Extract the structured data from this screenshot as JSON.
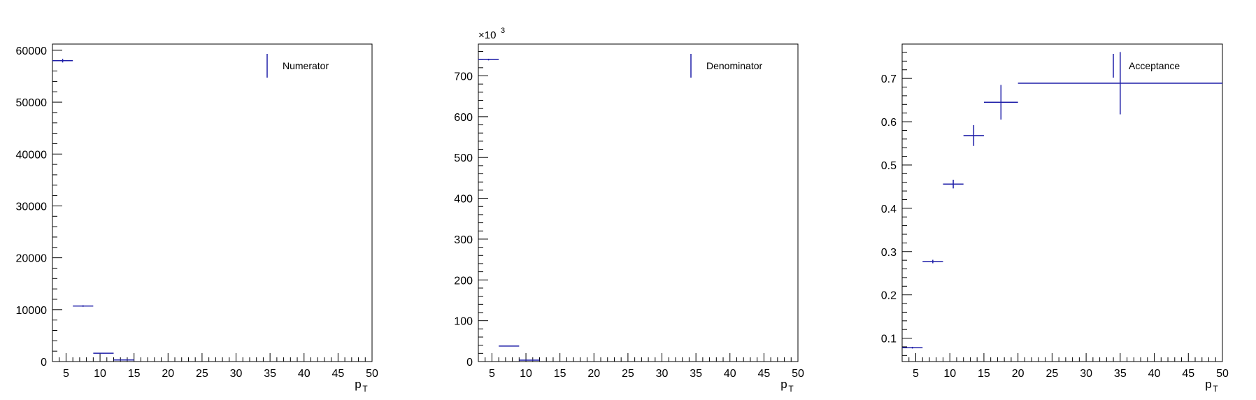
{
  "chart_data": [
    {
      "type": "scatter",
      "style": "error-bars",
      "xlabel": "p",
      "xlabel_sub": "T",
      "ylabel": "",
      "xlim": [
        3,
        50
      ],
      "ylim": [
        0,
        61200
      ],
      "x_ticks": [
        "5",
        "10",
        "15",
        "20",
        "25",
        "30",
        "35",
        "40",
        "45",
        "50"
      ],
      "y_ticks": [
        "0",
        "10000",
        "20000",
        "30000",
        "40000",
        "50000",
        "60000"
      ],
      "y_tick_values": [
        0,
        10000,
        20000,
        30000,
        40000,
        50000,
        60000
      ],
      "exponent": "",
      "legend": {
        "label": "Numerator",
        "position": "top-right"
      },
      "color": "#1f1fa8",
      "points": [
        {
          "x0": 3,
          "x1": 6,
          "y": 58000,
          "yerr": 350
        },
        {
          "x0": 6,
          "x1": 9,
          "y": 10700,
          "yerr": 150
        },
        {
          "x0": 9,
          "x1": 12,
          "y": 1600,
          "yerr": 60
        },
        {
          "x0": 12,
          "x1": 15,
          "y": 300,
          "yerr": 30
        }
      ]
    },
    {
      "type": "scatter",
      "style": "error-bars",
      "xlabel": "p",
      "xlabel_sub": "T",
      "ylabel": "",
      "xlim": [
        3,
        50
      ],
      "ylim": [
        0,
        778
      ],
      "x_ticks": [
        "5",
        "10",
        "15",
        "20",
        "25",
        "30",
        "35",
        "40",
        "45",
        "50"
      ],
      "y_ticks": [
        "0",
        "100",
        "200",
        "300",
        "400",
        "500",
        "600",
        "700"
      ],
      "y_tick_values": [
        0,
        100,
        200,
        300,
        400,
        500,
        600,
        700
      ],
      "exponent": "×10",
      "exponent_power": "3",
      "legend": {
        "label": "Denominator",
        "position": "top-right"
      },
      "color": "#1f1fa8",
      "points": [
        {
          "x0": 3,
          "x1": 6,
          "y": 740,
          "yerr": 2
        },
        {
          "x0": 6,
          "x1": 9,
          "y": 38,
          "yerr": 0.5
        },
        {
          "x0": 9,
          "x1": 12,
          "y": 3.5,
          "yerr": 0.2
        }
      ]
    },
    {
      "type": "scatter",
      "style": "error-bars",
      "xlabel": "p",
      "xlabel_sub": "T",
      "ylabel": "",
      "xlim": [
        3,
        50
      ],
      "ylim": [
        0.046,
        0.7794
      ],
      "x_ticks": [
        "5",
        "10",
        "15",
        "20",
        "25",
        "30",
        "35",
        "40",
        "45",
        "50"
      ],
      "y_ticks": [
        "0.1",
        "0.2",
        "0.3",
        "0.4",
        "0.5",
        "0.6",
        "0.7"
      ],
      "y_tick_values": [
        0.1,
        0.2,
        0.3,
        0.4,
        0.5,
        0.6,
        0.7
      ],
      "exponent": "",
      "legend": {
        "label": "Acceptance",
        "position": "top-right"
      },
      "color": "#1f1fa8",
      "points": [
        {
          "x0": 3,
          "x1": 6,
          "y": 0.078,
          "yerr": 0.002
        },
        {
          "x0": 6,
          "x1": 9,
          "y": 0.277,
          "yerr": 0.004
        },
        {
          "x0": 9,
          "x1": 12,
          "y": 0.456,
          "yerr": 0.01
        },
        {
          "x0": 12,
          "x1": 15,
          "y": 0.568,
          "yerr": 0.024
        },
        {
          "x0": 15,
          "x1": 20,
          "y": 0.645,
          "yerr": 0.04
        },
        {
          "x0": 20,
          "x1": 50,
          "y": 0.689,
          "yerr": 0.072
        }
      ]
    }
  ]
}
